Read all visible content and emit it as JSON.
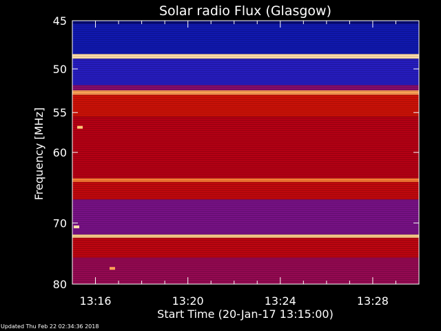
{
  "chart_data": {
    "type": "heatmap",
    "title": "Solar radio Flux (Glasgow)",
    "xlabel": "Start Time (20-Jan-17 13:15:00)",
    "ylabel": "Frequency [MHz]",
    "x_range_minutes": [
      15.0,
      30.0
    ],
    "x_ticks": [
      {
        "minute": 16,
        "label": "13:16"
      },
      {
        "minute": 20,
        "label": "13:20"
      },
      {
        "minute": 24,
        "label": "13:24"
      },
      {
        "minute": 28,
        "label": "13:28"
      }
    ],
    "y_range_mhz": [
      45,
      80
    ],
    "y_scale": "log",
    "y_ticks": [
      45,
      50,
      55,
      60,
      70,
      80
    ],
    "colors": {
      "background": "#000000",
      "low": "#000060",
      "mid": "#b00000",
      "high": "#ffd070"
    },
    "bands": [
      {
        "from_mhz": 45.0,
        "to_mhz": 45.3,
        "level": 0.05
      },
      {
        "from_mhz": 45.3,
        "to_mhz": 48.4,
        "level": 0.12
      },
      {
        "from_mhz": 48.4,
        "to_mhz": 48.9,
        "level": 0.95
      },
      {
        "from_mhz": 48.9,
        "to_mhz": 51.8,
        "level": 0.18
      },
      {
        "from_mhz": 51.8,
        "to_mhz": 52.4,
        "level": 0.35
      },
      {
        "from_mhz": 52.4,
        "to_mhz": 52.9,
        "level": 0.85
      },
      {
        "from_mhz": 52.9,
        "to_mhz": 55.5,
        "level": 0.55
      },
      {
        "from_mhz": 55.5,
        "to_mhz": 63.5,
        "level": 0.45
      },
      {
        "from_mhz": 63.5,
        "to_mhz": 64.0,
        "level": 0.8
      },
      {
        "from_mhz": 64.0,
        "to_mhz": 66.5,
        "level": 0.5
      },
      {
        "from_mhz": 66.5,
        "to_mhz": 71.8,
        "level": 0.32
      },
      {
        "from_mhz": 71.8,
        "to_mhz": 72.3,
        "level": 0.92
      },
      {
        "from_mhz": 72.3,
        "to_mhz": 75.5,
        "level": 0.48
      },
      {
        "from_mhz": 75.5,
        "to_mhz": 80.0,
        "level": 0.38
      }
    ],
    "bursts": [
      {
        "minute": 15.3,
        "mhz": 56.8,
        "level": 0.9
      },
      {
        "minute": 15.15,
        "mhz": 70.6,
        "level": 0.95
      },
      {
        "minute": 16.7,
        "mhz": 77.3,
        "level": 0.85
      }
    ]
  },
  "footer": {
    "updated": "Updated Thu Feb 22 02:34:36 2018"
  }
}
